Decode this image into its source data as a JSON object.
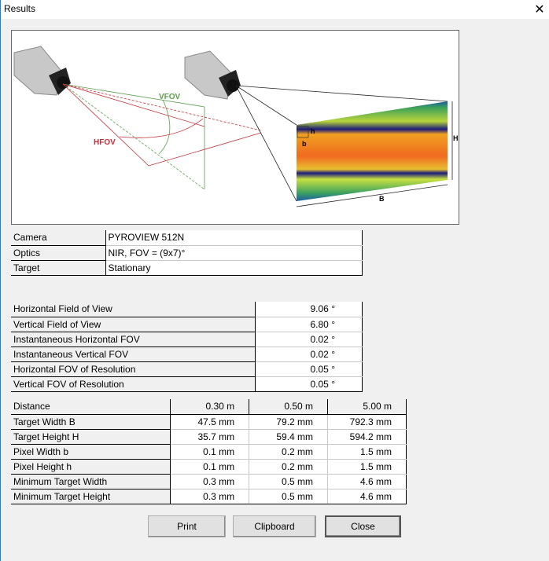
{
  "window": {
    "title": "Results",
    "close_icon": "close-icon"
  },
  "illustration": {
    "labels": {
      "vfov": "VFOV",
      "hfov": "HFOV",
      "h": "h",
      "b": "b",
      "H": "H",
      "B": "B"
    },
    "colors": {
      "vfov": "#5a9e4a",
      "hfov": "#c0303a"
    }
  },
  "info": [
    {
      "label": "Camera",
      "value": "PYROVIEW 512N"
    },
    {
      "label": "Optics",
      "value": "NIR, FOV = (9x7)°"
    },
    {
      "label": "Target",
      "value": "Stationary"
    }
  ],
  "fov": [
    {
      "label": "Horizontal Field of View",
      "value": "9.06 °"
    },
    {
      "label": "Vertical Field of View",
      "value": "6.80 °"
    },
    {
      "label": "Instantaneous Horizontal FOV",
      "value": "0.02 °"
    },
    {
      "label": "Instantaneous Vertical FOV",
      "value": "0.02 °"
    },
    {
      "label": "Horizontal FOV of Resolution",
      "value": "0.05 °"
    },
    {
      "label": "Vertical FOV of Resolution",
      "value": "0.05 °"
    }
  ],
  "distance": {
    "header": {
      "label": "Distance",
      "values": [
        "0.30 m",
        "0.50 m",
        "5.00 m"
      ]
    },
    "rows": [
      {
        "label": "Target Width B",
        "values": [
          "47.5 mm",
          "79.2 mm",
          "792.3 mm"
        ]
      },
      {
        "label": "Target Height H",
        "values": [
          "35.7 mm",
          "59.4 mm",
          "594.2 mm"
        ]
      },
      {
        "label": "Pixel Width b",
        "values": [
          "0.1 mm",
          "0.2 mm",
          "1.5 mm"
        ]
      },
      {
        "label": "Pixel Height h",
        "values": [
          "0.1 mm",
          "0.2 mm",
          "1.5 mm"
        ]
      },
      {
        "label": "Minimum Target Width",
        "values": [
          "0.3 mm",
          "0.5 mm",
          "4.6 mm"
        ]
      },
      {
        "label": "Minimum Target Height",
        "values": [
          "0.3 mm",
          "0.5 mm",
          "4.6 mm"
        ]
      }
    ]
  },
  "buttons": {
    "print": "Print",
    "clipboard": "Clipboard",
    "close": "Close"
  }
}
